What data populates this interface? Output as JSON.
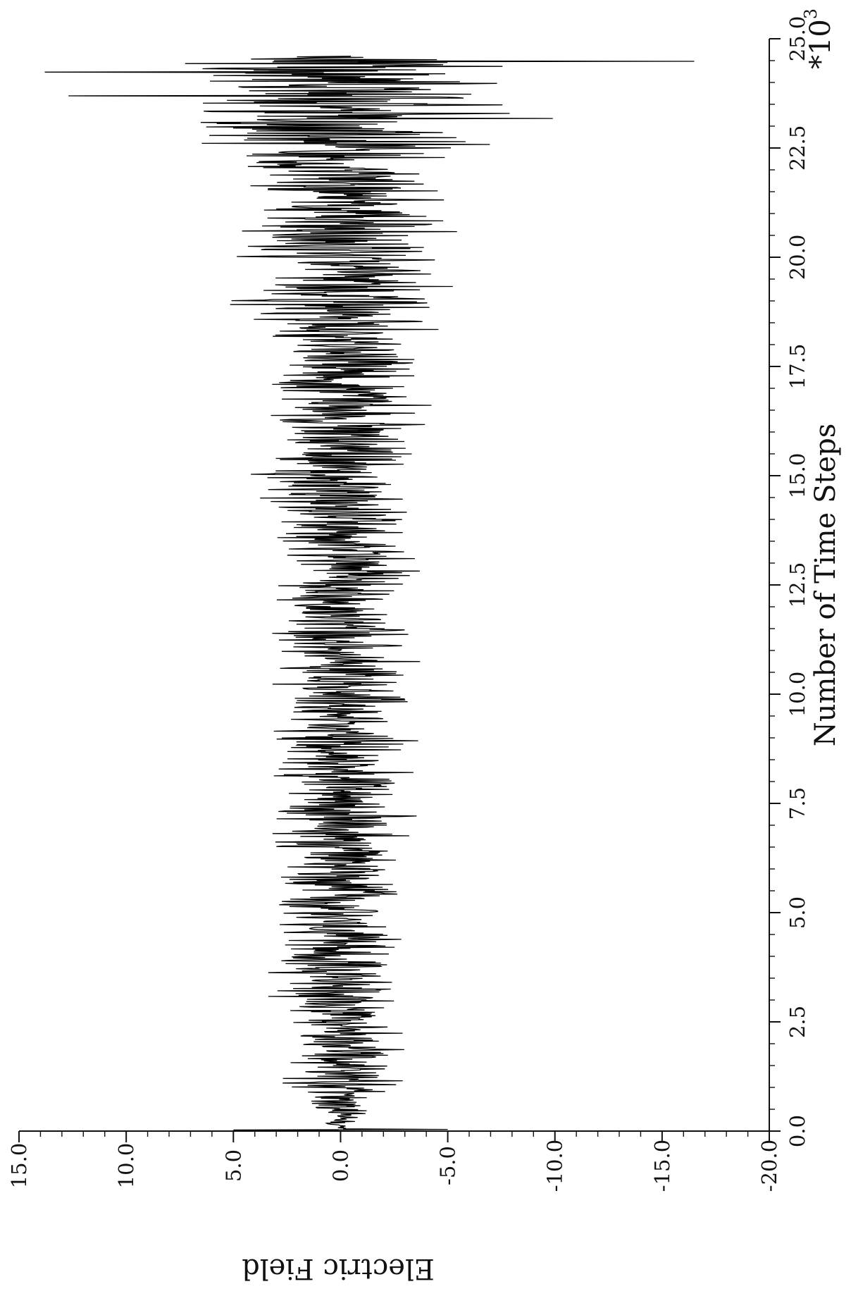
{
  "chart_data": {
    "type": "line",
    "orientation": "rotated-90",
    "xlabel": "Number of Time Steps",
    "xscale_label": "*10",
    "xscale_exponent": "3",
    "ylabel": "Electric Field",
    "xlim": [
      0,
      25.0
    ],
    "ylim": [
      -20.0,
      15.0
    ],
    "xticks": [
      "0.0",
      "2.5",
      "5.0",
      "7.5",
      "10.0",
      "12.5",
      "15.0",
      "17.5",
      "20.0",
      "22.5",
      "25.0"
    ],
    "yticks": [
      "15.0",
      "10.0",
      "5.0",
      "0.0",
      "-5.0",
      "-10.0",
      "-15.0",
      "-20.0"
    ],
    "xtick_values": [
      0,
      2.5,
      5.0,
      7.5,
      10.0,
      12.5,
      15.0,
      17.5,
      20.0,
      22.5,
      25.0
    ],
    "ytick_values": [
      15.0,
      10.0,
      5.0,
      0.0,
      -5.0,
      -10.0,
      -15.0,
      -20.0
    ],
    "grid": false,
    "series": [
      {
        "envelope_x": [
          0,
          0.5,
          1,
          2,
          3,
          4,
          5,
          6,
          7,
          8,
          9,
          10,
          11,
          12,
          13,
          14,
          15,
          16,
          17,
          18,
          19,
          20,
          21,
          22,
          23,
          24,
          24.6
        ],
        "envelope_y": [
          0.4,
          1.5,
          2.5,
          2.6,
          2.8,
          2.8,
          2.6,
          2.8,
          3.0,
          3.0,
          2.9,
          3.0,
          3.0,
          3.0,
          3.0,
          3.2,
          3.3,
          3.2,
          3.4,
          4.0,
          4.6,
          4.8,
          4.6,
          5.0,
          6.8,
          7.8,
          7.6
        ],
        "peak_max_y": 13.8,
        "peak_min_y": -16.5
      }
    ]
  }
}
